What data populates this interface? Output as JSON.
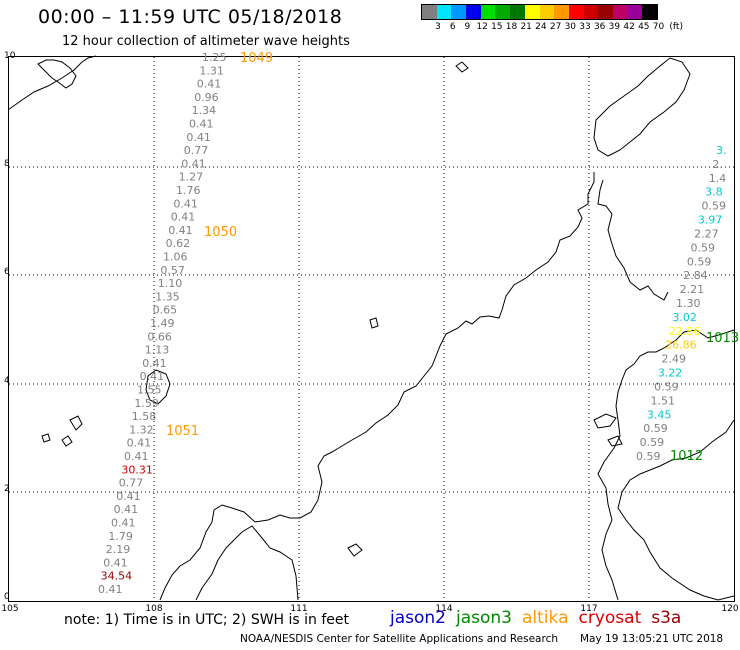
{
  "header": {
    "title": "00:00 – 11:59 UTC 05/18/2018",
    "subtitle": "12 hour collection of altimeter wave heights"
  },
  "legend": {
    "labels": [
      "3",
      "6",
      "9",
      "12",
      "15",
      "18",
      "21",
      "24",
      "27",
      "30",
      "33",
      "36",
      "39",
      "42",
      "45",
      "70",
      "(ft)"
    ],
    "colors": [
      "#808080",
      "#00e5ff",
      "#0099ff",
      "#0000ee",
      "#00dd00",
      "#00aa00",
      "#007700",
      "#ffff00",
      "#ffcc00",
      "#ff9900",
      "#ff0000",
      "#cc0000",
      "#990000",
      "#bb0066",
      "#990099",
      "#000000"
    ]
  },
  "axes": {
    "x_ticks": [
      "105",
      "108",
      "111",
      "114",
      "117",
      "120"
    ],
    "y_ticks": [
      "0",
      "2",
      "4",
      "6",
      "8",
      "10"
    ]
  },
  "track_values": {
    "west_track": [
      {
        "v": "1.25",
        "c": "#808080"
      },
      {
        "v": "1.31",
        "c": "#808080"
      },
      {
        "v": "0.41",
        "c": "#808080"
      },
      {
        "v": "0.96",
        "c": "#808080"
      },
      {
        "v": "1.34",
        "c": "#808080"
      },
      {
        "v": "0.41",
        "c": "#808080"
      },
      {
        "v": "0.41",
        "c": "#808080"
      },
      {
        "v": "0.77",
        "c": "#808080"
      },
      {
        "v": "0.41",
        "c": "#808080"
      },
      {
        "v": "1.27",
        "c": "#808080"
      },
      {
        "v": "1.76",
        "c": "#808080"
      },
      {
        "v": "0.41",
        "c": "#808080"
      },
      {
        "v": "0.41",
        "c": "#808080"
      },
      {
        "v": "0.41",
        "c": "#808080"
      },
      {
        "v": "0.62",
        "c": "#808080"
      },
      {
        "v": "1.06",
        "c": "#808080"
      },
      {
        "v": "0.57",
        "c": "#808080"
      },
      {
        "v": "1.10",
        "c": "#808080"
      },
      {
        "v": "1.35",
        "c": "#808080"
      },
      {
        "v": "0.65",
        "c": "#808080"
      },
      {
        "v": "1.49",
        "c": "#808080"
      },
      {
        "v": "0.66",
        "c": "#808080"
      },
      {
        "v": "1.13",
        "c": "#808080"
      },
      {
        "v": "0.41",
        "c": "#808080"
      },
      {
        "v": "0.41",
        "c": "#808080"
      },
      {
        "v": "1.55",
        "c": "#808080"
      },
      {
        "v": "1.59",
        "c": "#808080"
      },
      {
        "v": "1.58",
        "c": "#808080"
      },
      {
        "v": "1.32",
        "c": "#808080"
      },
      {
        "v": "0.41",
        "c": "#808080"
      },
      {
        "v": "0.41",
        "c": "#808080"
      },
      {
        "v": "30.31",
        "c": "#cc0000"
      },
      {
        "v": "0.77",
        "c": "#808080"
      },
      {
        "v": "0.41",
        "c": "#808080"
      },
      {
        "v": "0.41",
        "c": "#808080"
      },
      {
        "v": "0.41",
        "c": "#808080"
      },
      {
        "v": "1.79",
        "c": "#808080"
      },
      {
        "v": "2.19",
        "c": "#808080"
      },
      {
        "v": "0.41",
        "c": "#808080"
      },
      {
        "v": "34.54",
        "c": "#990000"
      },
      {
        "v": "0.41",
        "c": "#808080"
      }
    ],
    "east_track": [
      {
        "v": "3.",
        "c": "#00cccc"
      },
      {
        "v": "2.",
        "c": "#808080"
      },
      {
        "v": "1.4",
        "c": "#808080"
      },
      {
        "v": "3.8",
        "c": "#00cccc"
      },
      {
        "v": "0.59",
        "c": "#808080"
      },
      {
        "v": "3.97",
        "c": "#00cccc"
      },
      {
        "v": "2.27",
        "c": "#808080"
      },
      {
        "v": "0.59",
        "c": "#808080"
      },
      {
        "v": "0.59",
        "c": "#808080"
      },
      {
        "v": "2.84",
        "c": "#808080"
      },
      {
        "v": "2.21",
        "c": "#808080"
      },
      {
        "v": "1.30",
        "c": "#808080"
      },
      {
        "v": "3.02",
        "c": "#00cccc"
      },
      {
        "v": "22.86",
        "c": "#ffff00"
      },
      {
        "v": "26.86",
        "c": "#ffcc00"
      },
      {
        "v": "2.49",
        "c": "#808080"
      },
      {
        "v": "3.22",
        "c": "#00cccc"
      },
      {
        "v": "0.59",
        "c": "#808080"
      },
      {
        "v": "1.51",
        "c": "#808080"
      },
      {
        "v": "3.45",
        "c": "#00cccc"
      },
      {
        "v": "0.59",
        "c": "#808080"
      },
      {
        "v": "0.59",
        "c": "#808080"
      },
      {
        "v": "0.59",
        "c": "#808080"
      }
    ]
  },
  "pass_labels": [
    {
      "text": "1049",
      "color": "#ff9900"
    },
    {
      "text": "1050",
      "color": "#ff9900"
    },
    {
      "text": "1051",
      "color": "#ff9900"
    },
    {
      "text": "1013",
      "color": "#008800"
    },
    {
      "text": "1012",
      "color": "#008800"
    }
  ],
  "footer": {
    "note": "note:  1) Time is in UTC; 2) SWH is in feet",
    "satellites": [
      {
        "name": "jason2",
        "color": "#0000cc"
      },
      {
        "name": "jason3",
        "color": "#008800"
      },
      {
        "name": "altika",
        "color": "#ff9900"
      },
      {
        "name": "cryosat",
        "color": "#dd0000"
      },
      {
        "name": "s3a",
        "color": "#990000"
      }
    ],
    "credit": "NOAA/NESDIS Center for Satellite Applications and Research",
    "timestamp": "May 19 13:05:21 UTC 2018"
  }
}
